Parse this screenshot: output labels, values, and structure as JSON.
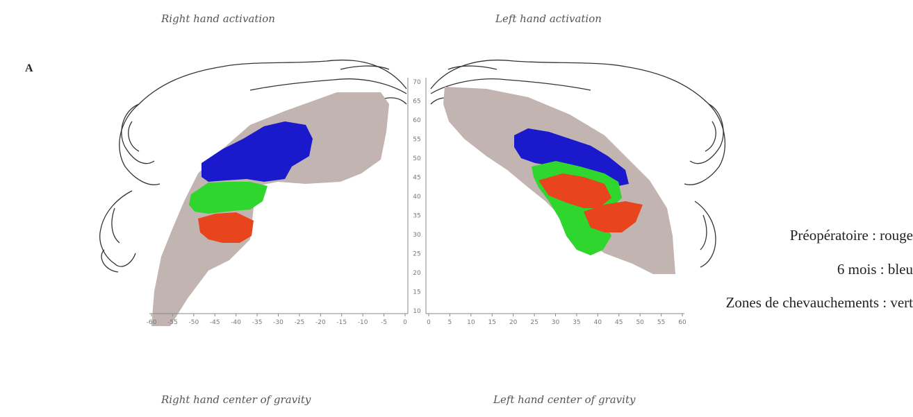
{
  "panel_label": "A",
  "titles": {
    "right_activation": "Right hand activation",
    "left_activation": "Left hand activation",
    "right_center": "Right hand center of gravity",
    "left_center": "Left hand center of gravity"
  },
  "legend": [
    {
      "text": "Préopératoire : rouge",
      "color": "#e8441e"
    },
    {
      "text": "6 mois : bleu",
      "color": "#1a1acc"
    },
    {
      "text": "Zones de chevauchements : vert",
      "color": "#2ed62e"
    }
  ],
  "axes": {
    "y_ticks": [
      "70",
      "65",
      "60",
      "55",
      "50",
      "45",
      "40",
      "35",
      "30",
      "25",
      "20",
      "15",
      "10"
    ],
    "x_ticks_left": [
      "-60",
      "-55",
      "-50",
      "-45",
      "-40",
      "-35",
      "-30",
      "-25",
      "-20",
      "-15",
      "-10",
      "-5",
      "0"
    ],
    "x_ticks_right": [
      "0",
      "5",
      "10",
      "15",
      "20",
      "25",
      "30",
      "35",
      "40",
      "45",
      "50",
      "55",
      "60"
    ]
  },
  "colors": {
    "tissue": "#c2b4b0",
    "outline": "#333333",
    "axis": "#888888"
  }
}
